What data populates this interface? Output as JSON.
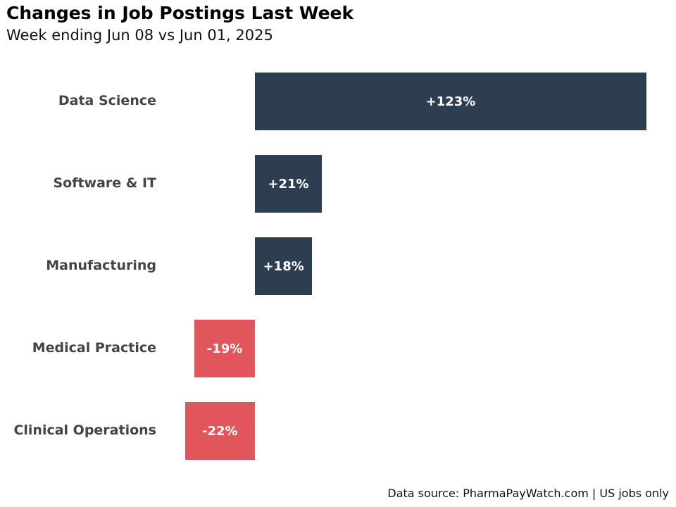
{
  "header": {
    "title": "Changes in Job Postings Last Week",
    "subtitle": "Week ending Jun 08 vs Jun 01, 2025"
  },
  "footer": {
    "source": "Data source: PharmaPayWatch.com | US jobs only"
  },
  "colors": {
    "positive": "#2d3e50",
    "negative": "#e0565b",
    "label": "#444444"
  },
  "chart_data": {
    "type": "bar",
    "orientation": "horizontal",
    "title": "Changes in Job Postings Last Week",
    "subtitle": "Week ending Jun 08 vs Jun 01, 2025",
    "xlabel": "",
    "ylabel": "",
    "unit": "%",
    "grid": false,
    "legend": null,
    "categories": [
      "Data Science",
      "Software & IT",
      "Manufacturing",
      "Medical Practice",
      "Clinical Operations"
    ],
    "values": [
      123,
      21,
      18,
      -19,
      -22
    ],
    "value_labels": [
      "+123%",
      "+21%",
      "+18%",
      "-19%",
      "-22%"
    ],
    "annotation": "Data source: PharmaPayWatch.com | US jobs only"
  }
}
